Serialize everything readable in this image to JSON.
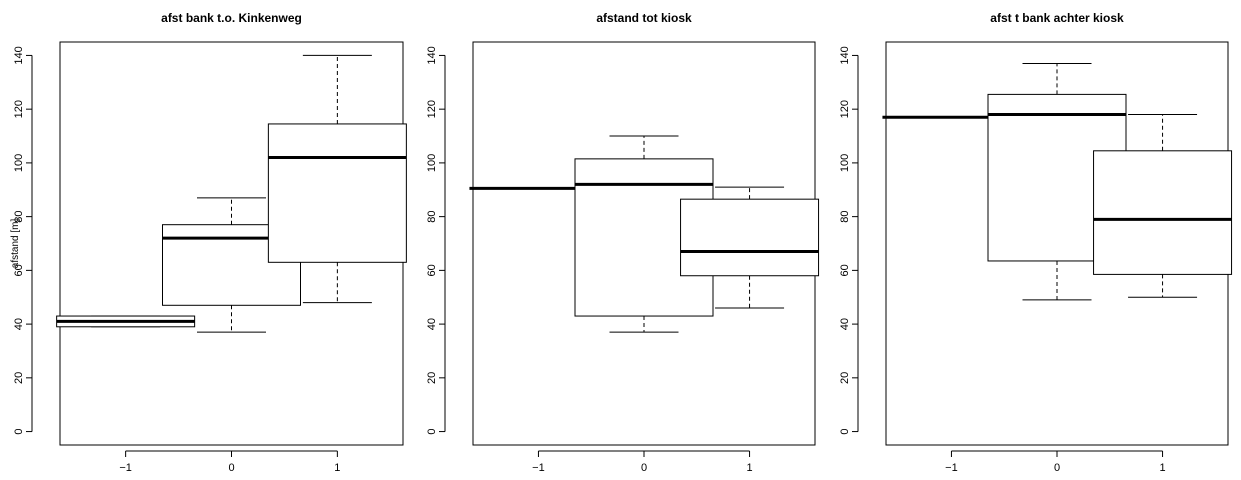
{
  "chart_data": [
    {
      "type": "box",
      "title": "afst bank t.o. Kinkenweg",
      "ylabel": "afstand [m]",
      "xlabel": "",
      "categories": [
        "−1",
        "0",
        "1"
      ],
      "ylim": [
        -5,
        145
      ],
      "yticks": [
        0,
        20,
        40,
        60,
        80,
        100,
        120,
        140
      ],
      "boxes": [
        {
          "min": 39,
          "q1": 39,
          "median": 41,
          "q3": 43,
          "max": 43
        },
        {
          "min": 37,
          "q1": 47,
          "median": 72,
          "q3": 77,
          "max": 87
        },
        {
          "min": 48,
          "q1": 63,
          "median": 102,
          "q3": 114.5,
          "max": 140
        }
      ]
    },
    {
      "type": "box",
      "title": "afstand tot kiosk",
      "ylabel": "",
      "xlabel": "",
      "categories": [
        "−1",
        "0",
        "1"
      ],
      "ylim": [
        -5,
        145
      ],
      "yticks": [
        0,
        20,
        40,
        60,
        80,
        100,
        120,
        140
      ],
      "boxes": [
        {
          "min": 90.5,
          "q1": 90.5,
          "median": 90.5,
          "q3": 90.5,
          "max": 90.5
        },
        {
          "min": 37,
          "q1": 43,
          "median": 92,
          "q3": 101.5,
          "max": 110
        },
        {
          "min": 46,
          "q1": 58,
          "median": 67,
          "q3": 86.5,
          "max": 91
        }
      ]
    },
    {
      "type": "box",
      "title": "afst t bank achter kiosk",
      "ylabel": "",
      "xlabel": "",
      "categories": [
        "−1",
        "0",
        "1"
      ],
      "ylim": [
        -5,
        145
      ],
      "yticks": [
        0,
        20,
        40,
        60,
        80,
        100,
        120,
        140
      ],
      "boxes": [
        {
          "min": 117,
          "q1": 117,
          "median": 117,
          "q3": 117,
          "max": 117
        },
        {
          "min": 49,
          "q1": 63.5,
          "median": 118,
          "q3": 125.5,
          "max": 137
        },
        {
          "min": 50,
          "q1": 58.5,
          "median": 79,
          "q3": 104.5,
          "max": 118
        }
      ]
    }
  ]
}
